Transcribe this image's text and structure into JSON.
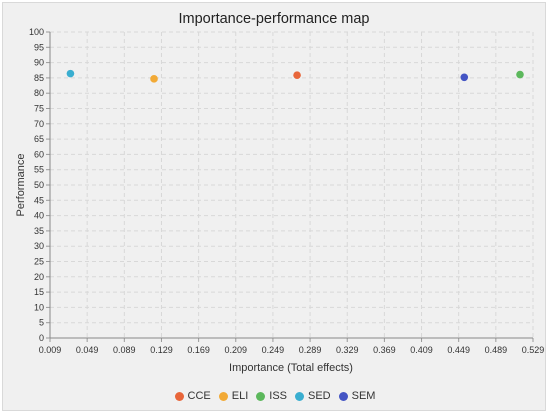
{
  "chart_data": {
    "type": "scatter",
    "title": "Importance-performance map",
    "xlabel": "Importance (Total effects)",
    "ylabel": "Performance",
    "xlim": [
      0.009,
      0.529
    ],
    "ylim": [
      0,
      100
    ],
    "x_ticks": [
      "0.009",
      "0.049",
      "0.089",
      "0.129",
      "0.169",
      "0.209",
      "0.249",
      "0.289",
      "0.329",
      "0.369",
      "0.409",
      "0.449",
      "0.489",
      "0.529"
    ],
    "y_ticks": [
      "0",
      "5",
      "10",
      "15",
      "20",
      "25",
      "30",
      "35",
      "40",
      "45",
      "50",
      "55",
      "60",
      "65",
      "70",
      "75",
      "80",
      "85",
      "90",
      "95",
      "100"
    ],
    "grid": true,
    "legend_position": "bottom",
    "series": [
      {
        "name": "CCE",
        "color": "#e8663a",
        "points": [
          {
            "x": 0.275,
            "y": 85.9
          }
        ]
      },
      {
        "name": "ELI",
        "color": "#f2aa36",
        "points": [
          {
            "x": 0.121,
            "y": 84.7
          }
        ]
      },
      {
        "name": "ISS",
        "color": "#5cb85c",
        "points": [
          {
            "x": 0.515,
            "y": 86.1
          }
        ]
      },
      {
        "name": "SED",
        "color": "#3aaed0",
        "points": [
          {
            "x": 0.031,
            "y": 86.4
          }
        ]
      },
      {
        "name": "SEM",
        "color": "#4455c4",
        "points": [
          {
            "x": 0.455,
            "y": 85.2
          }
        ]
      }
    ]
  }
}
